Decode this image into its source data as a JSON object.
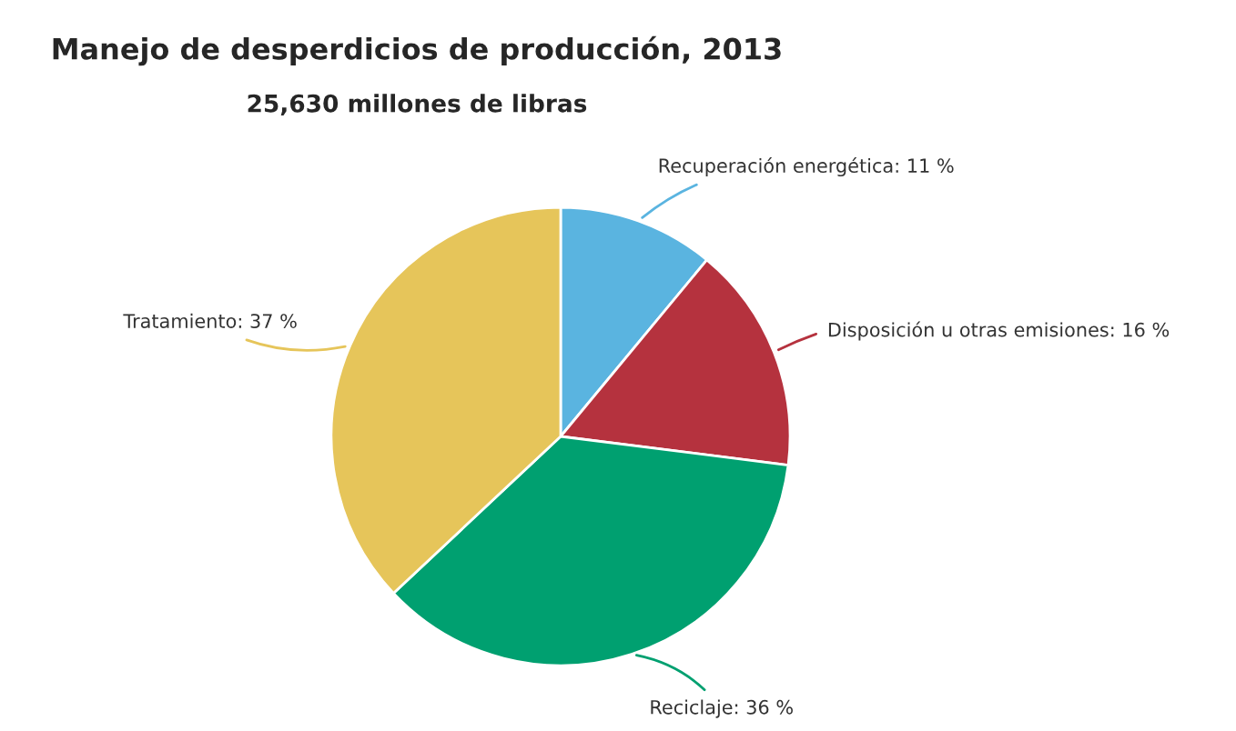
{
  "chart_data": {
    "type": "pie",
    "title": "Manejo de desperdicios de producción, 2013",
    "subtitle": "25,630 millones de libras",
    "categories": [
      "Recuperación energética",
      "Disposición u otras emisiones",
      "Reciclaje",
      "Tratamiento"
    ],
    "values": [
      11,
      16,
      36,
      37
    ],
    "value_labels": [
      "11 %",
      "16 %",
      "36 %",
      "37 %"
    ],
    "colors": [
      "#5ab4e0",
      "#b5323e",
      "#00a070",
      "#e6c55a"
    ],
    "legend": false
  }
}
